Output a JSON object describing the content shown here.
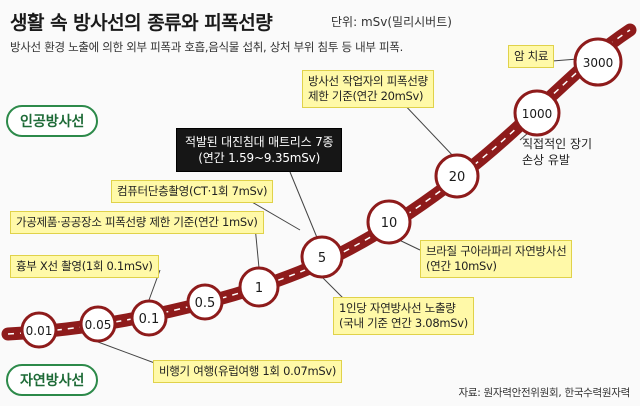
{
  "title": "생활 속 방사선의 종류와 피폭선량",
  "unit": "단위: mSv(밀리시버트)",
  "subtitle": "방사선 환경 노출에 의한 외부 피폭과 호흡,음식물 섭취, 상처 부위 침투 등 내부 피폭.",
  "categories": {
    "artificial": "인공방사선",
    "natural": "자연방사선"
  },
  "nodes": [
    {
      "value": "0.01"
    },
    {
      "value": "0.05"
    },
    {
      "value": "0.1"
    },
    {
      "value": "0.5"
    },
    {
      "value": "1"
    },
    {
      "value": "5"
    },
    {
      "value": "10"
    },
    {
      "value": "20"
    },
    {
      "value": "1000"
    },
    {
      "value": "3000"
    }
  ],
  "labels": {
    "xray": "흉부 X선 촬영(1회 0.1mSv)",
    "product": "가공제품·공공장소 피폭선량 제한 기준(연간 1mSv)",
    "ct": "컴퓨터단층촬영(CT·1회 7mSv)",
    "worker_1": "방사선 작업자의 피폭선량",
    "worker_2": "제한 기준(연간 20mSv)",
    "cancer": "암 치료",
    "bed_1": "적발된 대진침대 매트리스 7종",
    "bed_2": "(연간 1.59~9.35mSv)",
    "direct_1": "직접적인 장기",
    "direct_2": "손상 유발",
    "brazil_1": "브라질 구아라파리 자연방사선",
    "brazil_2": "(연간 10mSv)",
    "person_1": "1인당 자연방사선 노출량",
    "person_2": "(국내 기준 연간 3.08mSv)",
    "flight": "비행기 여행(유럽여행 1회 0.07mSv)"
  },
  "source": "자료: 원자력안전위원회, 한국수력원자력",
  "colors": {
    "band": "#8e1b1b",
    "band_dash": "#ffffff",
    "node_border": "#8e1b1b",
    "label_bg": "#fff9a8",
    "green": "#2d8a4a"
  }
}
